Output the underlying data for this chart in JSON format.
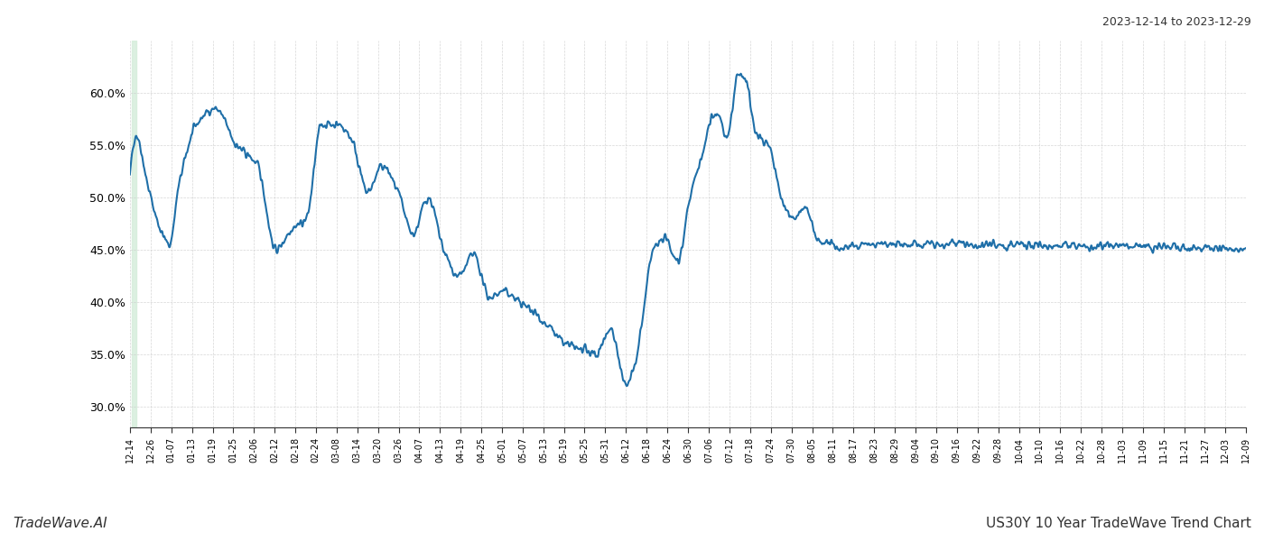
{
  "title_top_right": "2023-12-14 to 2023-12-29",
  "title_bottom_right": "US30Y 10 Year TradeWave Trend Chart",
  "title_bottom_left": "TradeWave.AI",
  "background_color": "#ffffff",
  "line_color": "#1f6fa8",
  "line_width": 1.5,
  "highlight_start": "2013-12-20",
  "highlight_end": "2014-01-03",
  "highlight_color": "#d4edda",
  "ylim": [
    28.0,
    65.0
  ],
  "yticks": [
    30.0,
    35.0,
    40.0,
    45.0,
    50.0,
    55.0,
    60.0
  ],
  "xtick_labels": [
    "12-14",
    "12-26",
    "01-07",
    "01-13",
    "01-19",
    "01-25",
    "02-06",
    "02-12",
    "02-18",
    "02-24",
    "03-08",
    "03-14",
    "03-20",
    "03-26",
    "04-07",
    "04-13",
    "04-19",
    "04-25",
    "05-01",
    "05-07",
    "05-13",
    "05-19",
    "05-25",
    "05-31",
    "06-12",
    "06-18",
    "06-24",
    "06-30",
    "07-06",
    "07-12",
    "07-18",
    "07-24",
    "07-30",
    "08-05",
    "08-11",
    "08-17",
    "08-23",
    "08-29",
    "09-04",
    "09-10",
    "09-16",
    "09-22",
    "09-28",
    "10-04",
    "10-10",
    "10-16",
    "10-22",
    "10-28",
    "11-03",
    "11-09",
    "11-15",
    "11-21",
    "11-27",
    "12-03",
    "12-09"
  ],
  "num_points": 2610,
  "seed": 42
}
